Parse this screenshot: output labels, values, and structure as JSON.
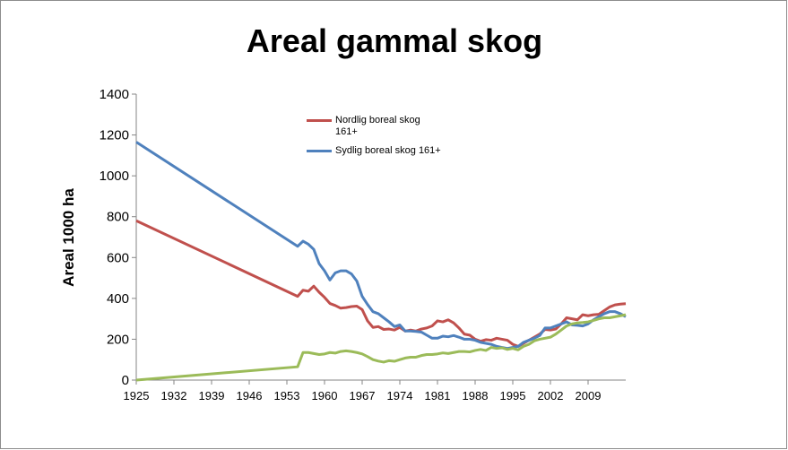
{
  "chart_data": {
    "type": "line",
    "title": "Areal gammal skog",
    "y_label": "Areal 1000 ha",
    "x": [
      1925,
      1955,
      1956,
      1957,
      1958,
      1959,
      1960,
      1961,
      1962,
      1963,
      1964,
      1965,
      1966,
      1967,
      1968,
      1969,
      1970,
      1971,
      1972,
      1973,
      1974,
      1975,
      1976,
      1977,
      1978,
      1979,
      1980,
      1981,
      1982,
      1983,
      1984,
      1985,
      1986,
      1987,
      1988,
      1989,
      1990,
      1991,
      1992,
      1993,
      1994,
      1995,
      1996,
      1997,
      1998,
      1999,
      2000,
      2001,
      2002,
      2003,
      2004,
      2005,
      2006,
      2007,
      2008,
      2009,
      2010,
      2011,
      2012,
      2013,
      2014,
      2015,
      2016
    ],
    "series": [
      {
        "name": "Nordlig boreal skog 161+",
        "color": "#c0504d",
        "values": [
          780,
          410,
          440,
          435,
          460,
          430,
          405,
          375,
          365,
          352,
          355,
          360,
          362,
          345,
          290,
          258,
          262,
          248,
          250,
          245,
          258,
          240,
          245,
          240,
          250,
          255,
          265,
          290,
          285,
          295,
          280,
          255,
          225,
          220,
          200,
          190,
          198,
          195,
          205,
          200,
          195,
          175,
          165,
          180,
          195,
          210,
          225,
          248,
          245,
          250,
          275,
          305,
          300,
          295,
          320,
          315,
          320,
          322,
          340,
          358,
          368,
          372,
          374
        ]
      },
      {
        "name": "Sydlig boreal skog 161+",
        "color": "#4f81bd",
        "values": [
          1165,
          655,
          680,
          665,
          640,
          570,
          535,
          490,
          525,
          535,
          535,
          520,
          485,
          410,
          370,
          335,
          325,
          305,
          285,
          262,
          270,
          240,
          240,
          238,
          235,
          220,
          205,
          205,
          215,
          212,
          218,
          210,
          200,
          200,
          195,
          185,
          180,
          175,
          165,
          160,
          155,
          160,
          165,
          185,
          195,
          205,
          218,
          255,
          255,
          265,
          275,
          285,
          270,
          268,
          265,
          275,
          295,
          310,
          325,
          335,
          335,
          325,
          310
        ]
      },
      {
        "color": "#9bbb59",
        "values": [
          0,
          65,
          135,
          135,
          130,
          125,
          128,
          135,
          132,
          140,
          143,
          140,
          135,
          128,
          115,
          100,
          93,
          88,
          95,
          92,
          100,
          108,
          112,
          112,
          120,
          125,
          125,
          128,
          133,
          130,
          135,
          140,
          140,
          138,
          145,
          150,
          145,
          160,
          155,
          158,
          150,
          155,
          148,
          165,
          175,
          192,
          200,
          205,
          210,
          225,
          245,
          265,
          275,
          280,
          282,
          285,
          292,
          300,
          305,
          305,
          310,
          315,
          320
        ]
      }
    ],
    "xlim": [
      1925,
      2016
    ],
    "xticks": [
      1925,
      1932,
      1939,
      1946,
      1953,
      1960,
      1967,
      1974,
      1981,
      1988,
      1995,
      2002,
      2009
    ],
    "ylim": [
      0,
      1400
    ],
    "yticks": [
      0,
      200,
      400,
      600,
      800,
      1000,
      1200,
      1400
    ],
    "grid": false
  }
}
